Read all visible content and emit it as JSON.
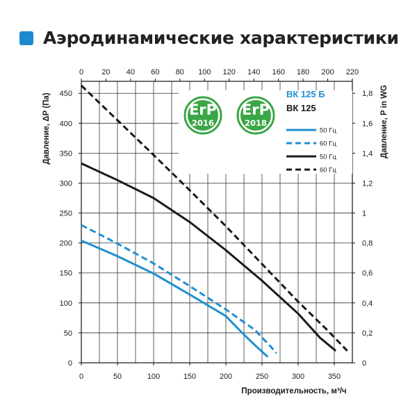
{
  "title": "Аэродинамические характеристики",
  "colors": {
    "blue": "#1f8fd1",
    "black": "#1a1a1a",
    "green": "#3aa646",
    "green_dark": "#1f7f33",
    "title_square": "#1e88d0",
    "grid": "#333333"
  },
  "badges": [
    {
      "main": "ErP",
      "year": "2016"
    },
    {
      "main": "ErP",
      "year": "2018"
    }
  ],
  "models": {
    "b": "ВК 125 Б",
    "plain": "ВК 125"
  },
  "legend": [
    {
      "label": "50 Гц",
      "color": "#1f8fd1",
      "dashed": false
    },
    {
      "label": "60 Гц",
      "color": "#1f8fd1",
      "dashed": true
    },
    {
      "label": "50 Гц",
      "color": "#1a1a1a",
      "dashed": false
    },
    {
      "label": "60 Гц",
      "color": "#1a1a1a",
      "dashed": true
    }
  ],
  "chart_data": {
    "type": "line",
    "xlabel": "Производительность, м³/ч",
    "ylabel": "Давление, ΔP (Па)",
    "y2label": "Давление, P in WG",
    "xlim": [
      0,
      375
    ],
    "ylim": [
      0,
      470
    ],
    "x_ticks": [
      0,
      50,
      100,
      150,
      200,
      250,
      300,
      350
    ],
    "y_ticks": [
      0,
      50,
      100,
      150,
      200,
      250,
      300,
      350,
      400,
      450
    ],
    "x2_lim": [
      0,
      220
    ],
    "x2_ticks": [
      0,
      20,
      40,
      60,
      80,
      100,
      120,
      140,
      160,
      180,
      200,
      220
    ],
    "y2_lim": [
      0,
      1.88
    ],
    "y2_ticks": [
      "0",
      "0,2",
      "0,4",
      "0,6",
      "0,8",
      "1",
      "1,2",
      "1,4",
      "1,6",
      "1,8"
    ],
    "grid": true,
    "series": [
      {
        "model": "ВК 125 Б",
        "name": "50 Гц",
        "color": "#1f8fd1",
        "dashed": false,
        "x": [
          0,
          50,
          100,
          150,
          200,
          225,
          245,
          258
        ],
        "y": [
          204,
          178,
          149,
          114,
          78,
          47,
          24,
          10
        ]
      },
      {
        "model": "ВК 125 Б",
        "name": "60 Гц",
        "color": "#1f8fd1",
        "dashed": true,
        "x": [
          0,
          50,
          100,
          150,
          200,
          240,
          262,
          270
        ],
        "y": [
          230,
          199,
          166,
          128,
          89,
          55,
          27,
          16
        ]
      },
      {
        "model": "ВК 125",
        "name": "50 Гц",
        "color": "#1a1a1a",
        "dashed": false,
        "x": [
          0,
          50,
          100,
          150,
          200,
          250,
          300,
          330,
          352
        ],
        "y": [
          333,
          305,
          275,
          235,
          188,
          137,
          82,
          42,
          20
        ]
      },
      {
        "model": "ВК 125",
        "name": "60 Гц",
        "color": "#1a1a1a",
        "dashed": true,
        "x": [
          0,
          50,
          100,
          150,
          200,
          250,
          300,
          340,
          368
        ],
        "y": [
          463,
          405,
          347,
          288,
          228,
          165,
          102,
          55,
          20
        ]
      }
    ]
  }
}
